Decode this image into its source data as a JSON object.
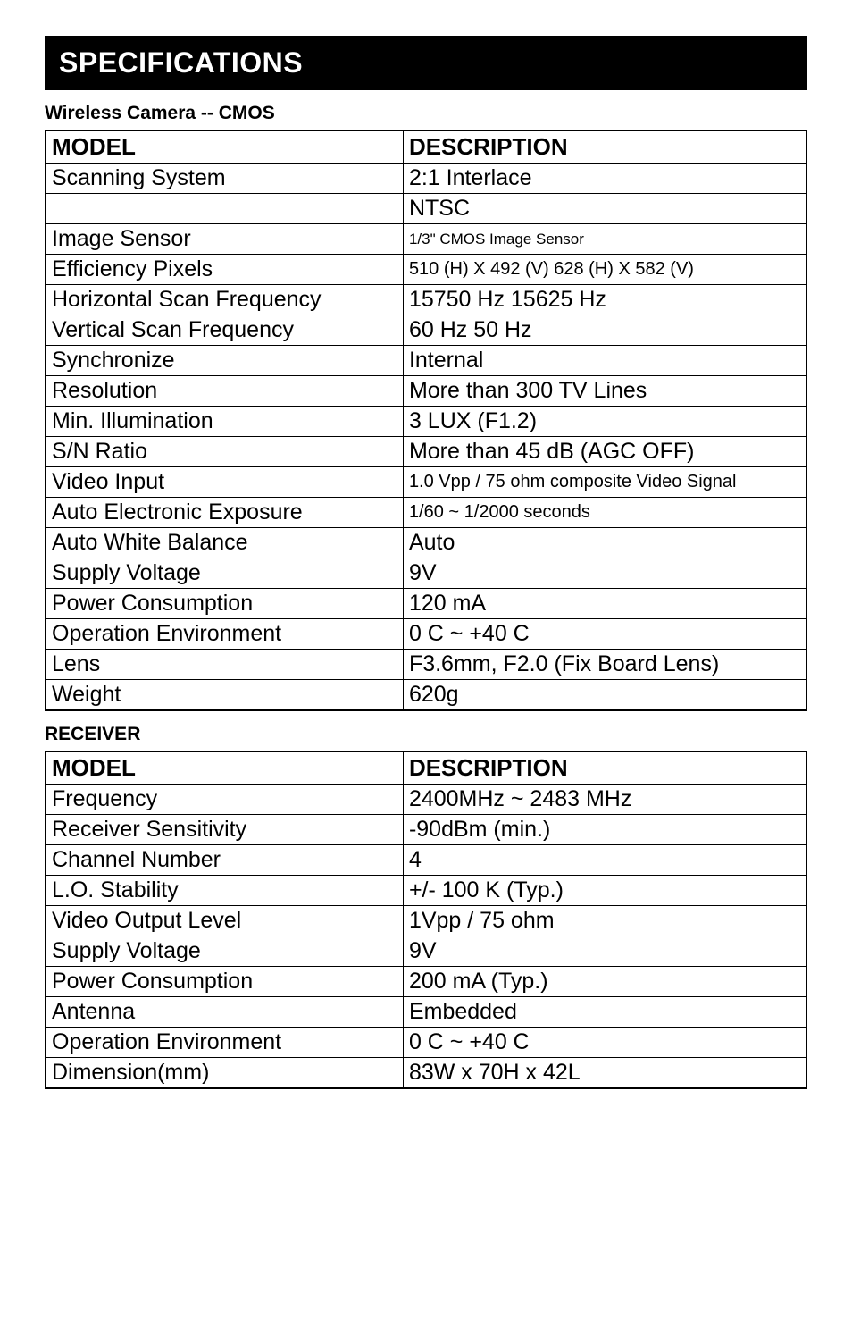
{
  "title": "SPECIFICATIONS",
  "camera_heading": "Wireless Camera -- CMOS",
  "receiver_heading": "RECEIVER",
  "headers": {
    "model": "MODEL",
    "description": "DESCRIPTION"
  },
  "camera_rows": [
    {
      "model": "Scanning System",
      "desc": "2:1 Interlace",
      "cls": ""
    },
    {
      "model": "",
      "desc": "NTSC",
      "cls": ""
    },
    {
      "model": "Image Sensor",
      "desc": "1/3\" CMOS Image Sensor",
      "cls": "small"
    },
    {
      "model": "Efficiency Pixels",
      "desc": "510 (H) X 492 (V) 628 (H) X 582 (V)",
      "cls": "med"
    },
    {
      "model": "Horizontal Scan Frequency",
      "desc": "15750 Hz 15625 Hz",
      "cls": ""
    },
    {
      "model": "Vertical Scan Frequency",
      "desc": "60 Hz 50 Hz",
      "cls": ""
    },
    {
      "model": "Synchronize",
      "desc": "Internal",
      "cls": ""
    },
    {
      "model": "Resolution",
      "desc": "More than 300 TV Lines",
      "cls": ""
    },
    {
      "model": "Min. Illumination",
      "desc": "3 LUX (F1.2)",
      "cls": ""
    },
    {
      "model": "S/N Ratio",
      "desc": "More than 45 dB (AGC OFF)",
      "cls": ""
    },
    {
      "model": "Video Input",
      "desc": "1.0 Vpp / 75 ohm composite Video Signal",
      "cls": "med"
    },
    {
      "model": "Auto Electronic Exposure",
      "desc": "1/60 ~ 1/2000 seconds",
      "cls": "med"
    },
    {
      "model": "Auto White Balance",
      "desc": "Auto",
      "cls": ""
    },
    {
      "model": "Supply Voltage",
      "desc": "9V",
      "cls": ""
    },
    {
      "model": "Power Consumption",
      "desc": "120 mA",
      "cls": ""
    },
    {
      "model": "Operation Environment",
      "desc": "0 C ~ +40 C",
      "cls": ""
    },
    {
      "model": "Lens",
      "desc": "F3.6mm, F2.0 (Fix Board Lens)",
      "cls": ""
    },
    {
      "model": "Weight",
      "desc": "620g",
      "cls": ""
    }
  ],
  "receiver_rows": [
    {
      "model": "Frequency",
      "desc": "2400MHz ~ 2483 MHz",
      "cls": ""
    },
    {
      "model": "Receiver Sensitivity",
      "desc": "-90dBm (min.)",
      "cls": ""
    },
    {
      "model": "Channel Number",
      "desc": "4",
      "cls": ""
    },
    {
      "model": "L.O. Stability",
      "desc": "+/- 100 K    (Typ.)",
      "cls": ""
    },
    {
      "model": "Video Output Level",
      "desc": "1Vpp / 75 ohm",
      "cls": ""
    },
    {
      "model": "Supply Voltage",
      "desc": "9V",
      "cls": ""
    },
    {
      "model": "Power Consumption",
      "desc": "200 mA (Typ.)",
      "cls": ""
    },
    {
      "model": "Antenna",
      "desc": "Embedded",
      "cls": ""
    },
    {
      "model": "Operation Environment",
      "desc": "0 C ~ +40 C",
      "cls": ""
    },
    {
      "model": "Dimension(mm)",
      "desc": "83W x 70H x 42L",
      "cls": ""
    }
  ]
}
